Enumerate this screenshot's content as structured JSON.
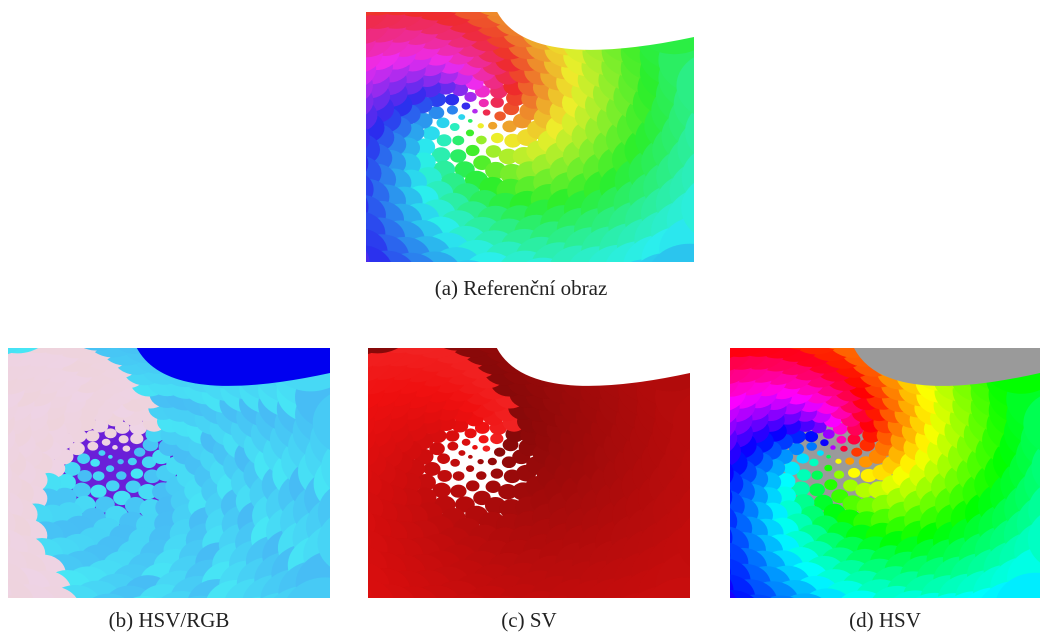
{
  "figure": {
    "images": [
      {
        "caption": "(a) Referenční obraz"
      },
      {
        "caption": "(b) HSV/RGB"
      },
      {
        "caption": "(c) SV"
      },
      {
        "caption": "(d) HSV"
      }
    ]
  }
}
